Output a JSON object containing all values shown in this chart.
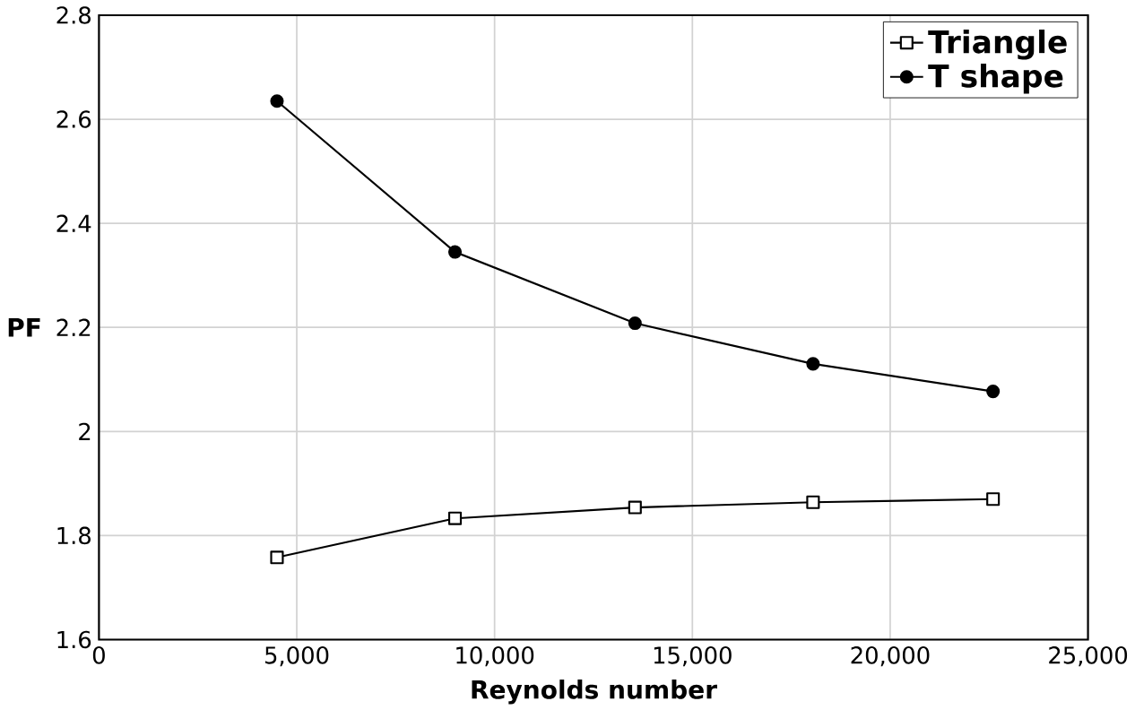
{
  "chart_data": {
    "type": "line",
    "xlabel": "Reynolds number",
    "ylabel": "PF",
    "xlim": [
      0,
      25000
    ],
    "ylim": [
      1.6,
      2.8
    ],
    "xticks": [
      {
        "value": 0,
        "label": "0"
      },
      {
        "value": 5000,
        "label": "5,000"
      },
      {
        "value": 10000,
        "label": "10,000"
      },
      {
        "value": 15000,
        "label": "15,000"
      },
      {
        "value": 20000,
        "label": "20,000"
      },
      {
        "value": 25000,
        "label": "25,000"
      }
    ],
    "yticks": [
      1.6,
      1.8,
      2,
      2.2,
      2.4,
      2.6,
      2.8
    ],
    "grid": true,
    "legend": "top right",
    "series": [
      {
        "name": "Triangle",
        "color": "#000000",
        "marker": "square",
        "x": [
          4500,
          9000,
          13550,
          18050,
          22600
        ],
        "values": [
          1.758,
          1.833,
          1.854,
          1.864,
          1.87
        ]
      },
      {
        "name": "T shape",
        "color": "#000000",
        "marker": "circle",
        "x": [
          4500,
          9000,
          13550,
          18050,
          22600
        ],
        "values": [
          2.635,
          2.345,
          2.208,
          2.13,
          2.077
        ]
      }
    ]
  }
}
